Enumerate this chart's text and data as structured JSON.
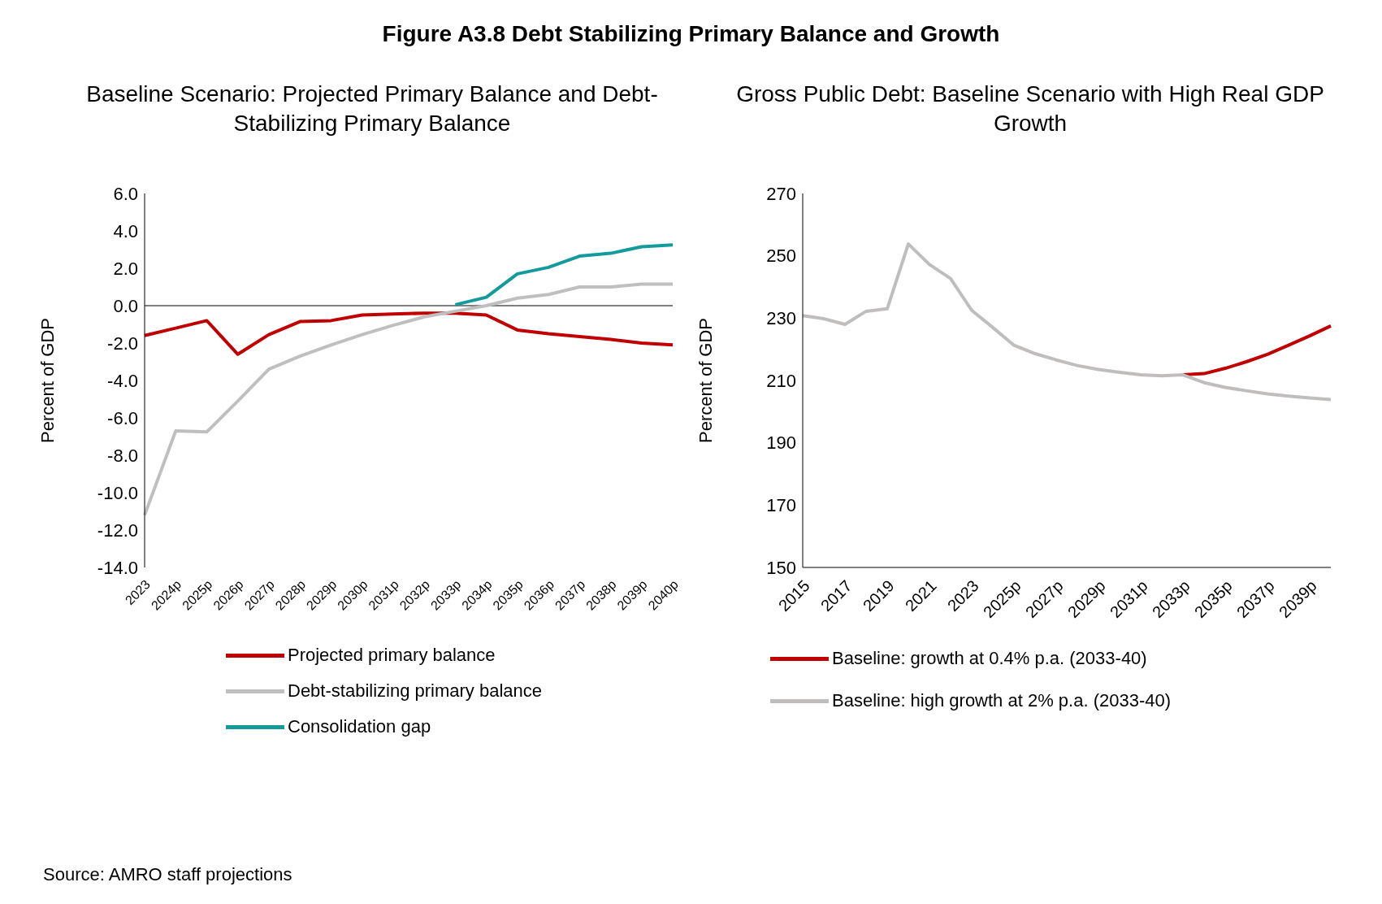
{
  "chart_data": [
    {
      "type": "line",
      "title": "Baseline Scenario: Projected Primary Balance and Debt-Stabilizing Primary Balance",
      "ylabel": "Percent of GDP",
      "annotations": [
        "Figure A3.8 Debt Stabilizing Primary Balance and Growth",
        "Source: AMRO staff projections"
      ],
      "categories": [
        "2023",
        "2024p",
        "2025p",
        "2026p",
        "2027p",
        "2028p",
        "2029p",
        "2030p",
        "2031p",
        "2032p",
        "2033p",
        "2034p",
        "2035p",
        "2036p",
        "2037p",
        "2038p",
        "2039p",
        "2040p"
      ],
      "series": [
        {
          "name": "Projected primary balance",
          "color": "#c00000",
          "values": [
            -1.6,
            -1.2,
            -0.8,
            -2.6,
            -1.55,
            -0.85,
            -0.8,
            -0.5,
            -0.45,
            -0.4,
            -0.4,
            -0.5,
            -1.3,
            -1.5,
            -1.65,
            -1.8,
            -2.0,
            -2.1
          ]
        },
        {
          "name": "Debt-stabilizing primary balance",
          "color": "#bfbfbf",
          "values": [
            -11.2,
            -6.7,
            -6.75,
            -5.1,
            -3.4,
            -2.7,
            -2.1,
            -1.55,
            -1.05,
            -0.6,
            -0.3,
            0,
            0.4,
            0.6,
            1.0,
            1.0,
            1.15,
            1.15
          ]
        },
        {
          "name": "Consolidation gap",
          "color": "#139b9b",
          "values": [
            null,
            null,
            null,
            null,
            null,
            null,
            null,
            null,
            null,
            null,
            0.05,
            0.45,
            1.7,
            2.05,
            2.65,
            2.8,
            3.15,
            3.25
          ]
        }
      ],
      "ylim": [
        -14,
        6
      ],
      "yticks": [
        {
          "value": -14,
          "label": "-14.0"
        },
        {
          "value": -12,
          "label": "-12.0"
        },
        {
          "value": -10,
          "label": "-10.0"
        },
        {
          "value": -8,
          "label": "-8.0"
        },
        {
          "value": -6,
          "label": "-6.0"
        },
        {
          "value": -4,
          "label": "-4.0"
        },
        {
          "value": -2,
          "label": "-2.0"
        },
        {
          "value": 0,
          "label": "0.0"
        },
        {
          "value": 2,
          "label": "2.0"
        },
        {
          "value": 4,
          "label": "4.0"
        },
        {
          "value": 6,
          "label": "6.0"
        }
      ],
      "ref_lines": [
        {
          "axis": "y",
          "value": 0,
          "color": "#000000"
        }
      ],
      "grid": false,
      "legend": "bottom",
      "marker": "none",
      "line_style": "solid"
    },
    {
      "type": "line",
      "title": "Gross Public Debt: Baseline Scenario with High Real GDP Growth",
      "ylabel": "Percent of GDP",
      "categories": [
        "2015",
        null,
        "2017",
        null,
        "2019",
        null,
        "2021",
        null,
        "2023",
        null,
        "2025p",
        null,
        "2027p",
        null,
        "2029p",
        null,
        "2031p",
        null,
        "2033p",
        null,
        "2035p",
        null,
        "2037p",
        null,
        "2039p",
        null
      ],
      "series": [
        {
          "name": "Baseline: growth at 0.4% p.a. (2033-40)",
          "color": "#c00000",
          "values": [
            null,
            null,
            null,
            null,
            null,
            null,
            null,
            null,
            null,
            null,
            null,
            null,
            null,
            null,
            null,
            null,
            null,
            null,
            211.8,
            212.2,
            213.9,
            216.0,
            218.4,
            221.3,
            224.3,
            227.5
          ]
        },
        {
          "name": "Baseline: high growth at 2% p.a. (2033-40)",
          "color": "#c0bdbd",
          "values": [
            230.8,
            229.8,
            228.0,
            232.2,
            233.0,
            253.8,
            247.2,
            242.7,
            232.5,
            227.0,
            221.3,
            218.6,
            216.6,
            214.8,
            213.5,
            212.6,
            211.8,
            211.5,
            211.8,
            209.3,
            207.8,
            206.7,
            205.7,
            205.0,
            204.4,
            203.9
          ]
        }
      ],
      "ylim": [
        150,
        270
      ],
      "yticks": [
        150,
        170,
        190,
        210,
        230,
        250,
        270
      ],
      "grid": false,
      "legend": "bottom",
      "marker": "none",
      "line_style": "solid"
    }
  ]
}
